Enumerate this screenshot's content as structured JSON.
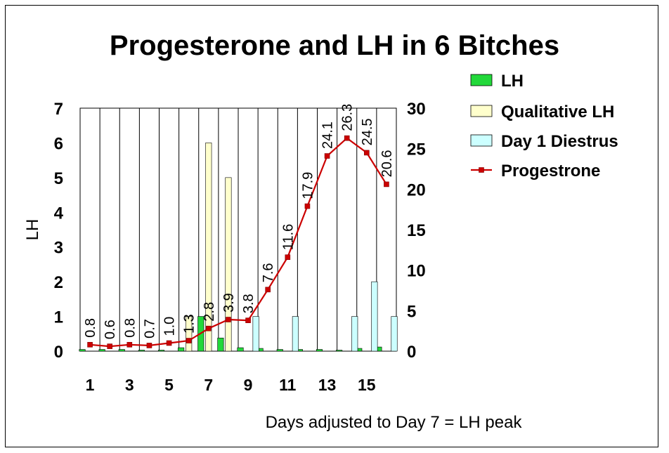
{
  "chart_data": {
    "type": "bar",
    "title": "Progesterone and LH in 6 Bitches",
    "xlabel": "Days adjusted to Day 7 = LH peak",
    "ylabel": "LH",
    "y2label": "",
    "x": [
      1,
      2,
      3,
      4,
      5,
      6,
      7,
      8,
      9,
      10,
      11,
      12,
      13,
      14,
      15,
      16
    ],
    "x_tick_labels": [
      "1",
      "3",
      "5",
      "7",
      "9",
      "11",
      "13",
      "15"
    ],
    "x_tick_days": [
      1,
      3,
      5,
      7,
      9,
      11,
      13,
      15
    ],
    "ylim": [
      0,
      7
    ],
    "y_ticks": [
      "0",
      "1",
      "2",
      "3",
      "4",
      "5",
      "6",
      "7"
    ],
    "y2lim": [
      0,
      30
    ],
    "y2_ticks": [
      "0",
      "5",
      "10",
      "15",
      "20",
      "25",
      "30"
    ],
    "grid": "vertical lines only",
    "legend_position": "right",
    "series": [
      {
        "name": "LH",
        "kind": "bar",
        "axis": "left",
        "color": "#22d83a",
        "values": [
          0.05,
          0.05,
          0.05,
          0.03,
          0.03,
          0.1,
          1.0,
          0.38,
          0.1,
          0.08,
          0.05,
          0.05,
          0.05,
          0.03,
          0.08,
          0.12
        ]
      },
      {
        "name": "Qualitative LH",
        "kind": "bar",
        "axis": "left",
        "color": "#ffffcc",
        "values": [
          0,
          0,
          0,
          0,
          0,
          1.0,
          6.0,
          5.0,
          0,
          0,
          0,
          0,
          0,
          0,
          0,
          0
        ]
      },
      {
        "name": "Day 1 Diestrus",
        "kind": "bar",
        "axis": "left",
        "color": "#ccffff",
        "values": [
          0,
          0,
          0,
          0,
          0,
          0,
          0,
          0,
          1.0,
          0,
          1.0,
          0,
          0,
          1.0,
          2.0,
          1.0
        ]
      },
      {
        "name": "Progestrone",
        "kind": "line",
        "axis": "right",
        "color": "#cc0000",
        "values": [
          0.8,
          0.6,
          0.8,
          0.7,
          1.0,
          1.3,
          2.8,
          3.9,
          3.8,
          7.6,
          11.6,
          17.9,
          24.1,
          26.3,
          24.5,
          20.6
        ],
        "data_labels": [
          "0.8",
          "0.6",
          "0.8",
          "0.7",
          "1.0",
          "1.3",
          "2.8",
          "3.9",
          "3.8",
          "7.6",
          "11.6",
          "17.9",
          "24.1",
          "26.3",
          "24.5",
          "20.6"
        ]
      }
    ]
  }
}
